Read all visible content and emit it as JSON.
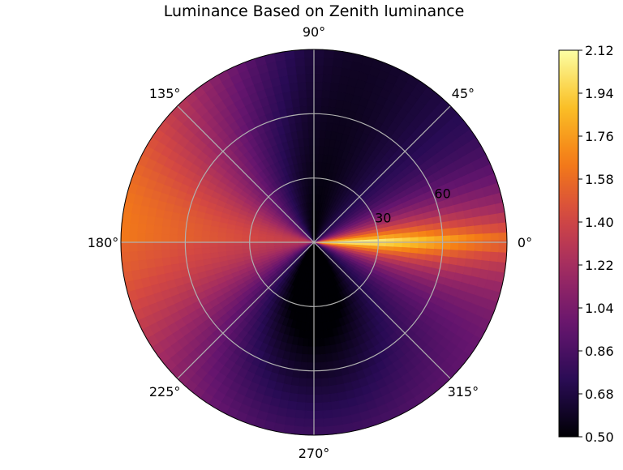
{
  "chart_data": {
    "type": "heatmap",
    "projection": "polar",
    "title": "Luminance Based on Zenith luminance",
    "angle_ticks": [
      "0°",
      "45°",
      "90°",
      "135°",
      "180°",
      "225°",
      "270°",
      "315°"
    ],
    "angle_tick_values": [
      0,
      45,
      90,
      135,
      180,
      225,
      270,
      315
    ],
    "radial_ticks": [
      "30",
      "60"
    ],
    "radial_tick_values": [
      30,
      60
    ],
    "radial_range": [
      0,
      90
    ],
    "grid": true,
    "colormap": "inferno",
    "colorbar": {
      "range": [
        0.5,
        2.12
      ],
      "ticks": [
        "0.50",
        "0.68",
        "0.86",
        "1.04",
        "1.22",
        "1.40",
        "1.58",
        "1.76",
        "1.94",
        "2.12"
      ],
      "tick_values": [
        0.5,
        0.68,
        0.86,
        1.04,
        1.22,
        1.4,
        1.58,
        1.76,
        1.94,
        2.12
      ],
      "placement": "right"
    },
    "field_samples": [
      {
        "azimuth": 0,
        "zenith": 15,
        "value": 2.12
      },
      {
        "azimuth": 0,
        "zenith": 60,
        "value": 1.62
      },
      {
        "azimuth": 0,
        "zenith": 90,
        "value": 1.3
      },
      {
        "azimuth": 20,
        "zenith": 60,
        "value": 1.55
      },
      {
        "azimuth": 45,
        "zenith": 45,
        "value": 1.25
      },
      {
        "azimuth": 90,
        "zenith": 20,
        "value": 0.75
      },
      {
        "azimuth": 90,
        "zenith": 90,
        "value": 0.6
      },
      {
        "azimuth": 135,
        "zenith": 60,
        "value": 1.1
      },
      {
        "azimuth": 180,
        "zenith": 20,
        "value": 1.35
      },
      {
        "azimuth": 180,
        "zenith": 70,
        "value": 1.25
      },
      {
        "azimuth": 225,
        "zenith": 60,
        "value": 0.9
      },
      {
        "azimuth": 270,
        "zenith": 20,
        "value": 0.55
      },
      {
        "azimuth": 270,
        "zenith": 90,
        "value": 0.5
      },
      {
        "azimuth": 315,
        "zenith": 60,
        "value": 0.9
      },
      {
        "azimuth": 340,
        "zenith": 80,
        "value": 1.1
      }
    ]
  }
}
